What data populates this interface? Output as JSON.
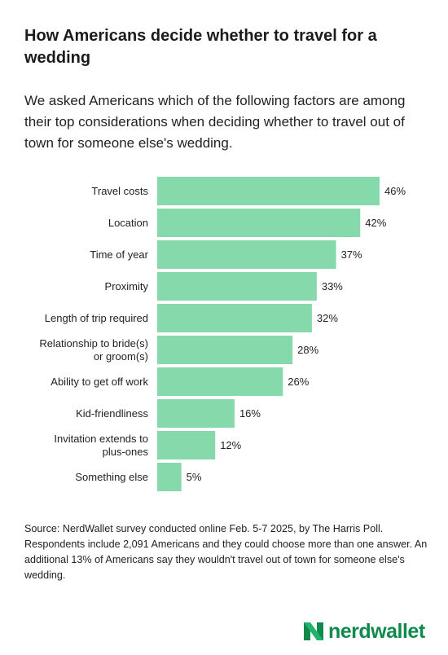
{
  "title": "How Americans decide whether to travel for a wedding",
  "subtitle": "We asked Americans which of the following factors are among their top considerations when deciding whether to travel out of town for someone else's wedding.",
  "source": "Source: NerdWallet survey conducted online Feb. 5-7 2025, by The Harris Poll. Respondents include 2,091 Americans and they could choose more than one answer. An additional 13% of Americans say they wouldn't travel out of town for someone else's wedding.",
  "brand": {
    "name": "nerdwallet",
    "icon": "nerdwallet-logo-icon"
  },
  "colors": {
    "bar": "#86d9aa",
    "brand": "#0f8a4a",
    "text": "#222222"
  },
  "chart_data": {
    "type": "bar",
    "orientation": "horizontal",
    "categories": [
      [
        "Travel costs"
      ],
      [
        "Location"
      ],
      [
        "Time of year"
      ],
      [
        "Proximity"
      ],
      [
        "Length of trip required"
      ],
      [
        "Relationship to bride(s)",
        "or groom(s)"
      ],
      [
        "Ability to get off work"
      ],
      [
        "Kid-friendliness"
      ],
      [
        "Invitation extends to",
        "plus-ones"
      ],
      [
        "Something else"
      ]
    ],
    "values": [
      46,
      42,
      37,
      33,
      32,
      28,
      26,
      16,
      12,
      5
    ],
    "value_labels": [
      "46%",
      "42%",
      "37%",
      "33%",
      "32%",
      "28%",
      "26%",
      "16%",
      "12%",
      "5%"
    ],
    "unit": "%",
    "xlim": [
      0,
      46
    ],
    "grid": false,
    "legend": "none"
  }
}
